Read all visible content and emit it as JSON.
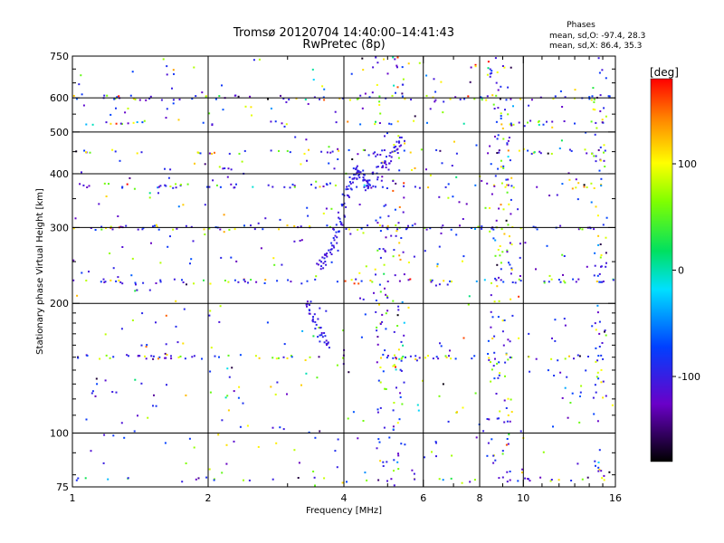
{
  "chart_data": {
    "type": "scatter",
    "title": "Tromsø 20120704 14:40:00–14:41:43",
    "subtitle": "RwPretec (8p)",
    "xlabel": "Frequency [MHz]",
    "ylabel": "Stationary phase Virtual Height [km]",
    "x_scale": "log",
    "y_scale": "log",
    "xlim": [
      1,
      16
    ],
    "ylim": [
      75,
      750
    ],
    "x_ticks": [
      1,
      2,
      4,
      6,
      8,
      10,
      16
    ],
    "y_ticks": [
      75,
      100,
      200,
      300,
      400,
      500,
      600,
      750
    ],
    "grid": true,
    "stats": {
      "title": "Phases",
      "line_o": "mean, sd,O: -97.4, 28.3",
      "line_x": "mean, sd,X:  86.4, 35.3"
    },
    "colorbar": {
      "label": "[deg]",
      "range": [
        -180,
        180
      ],
      "ticks": [
        100,
        0,
        -100
      ],
      "tick_labels": [
        "100",
        "0",
        "-100"
      ]
    },
    "traces": [
      {
        "name": "",
        "phase": -100,
        "x": [
          3.55,
          3.6,
          3.65,
          3.7,
          3.75,
          3.8,
          3.85,
          3.9,
          3.95,
          4.0,
          4.05,
          4.1,
          4.15,
          4.2,
          4.25,
          4.3,
          4.35,
          4.4,
          4.45,
          4.5
        ],
        "y": [
          245,
          250,
          255,
          262,
          270,
          280,
          292,
          305,
          320,
          340,
          355,
          370,
          385,
          395,
          405,
          410,
          400,
          392,
          385,
          380
        ]
      },
      {
        "name": "",
        "phase": -100,
        "x": [
          4.5,
          4.6,
          4.7,
          4.8,
          4.9,
          5.0,
          5.1,
          5.2,
          5.3,
          5.4
        ],
        "y": [
          372,
          380,
          395,
          410,
          420,
          430,
          445,
          455,
          470,
          480
        ]
      },
      {
        "name": "",
        "phase": -100,
        "x": [
          3.35,
          3.4,
          3.45,
          3.5,
          3.55,
          3.6,
          3.65
        ],
        "y": [
          200,
          192,
          185,
          178,
          170,
          165,
          160
        ]
      }
    ],
    "bands": [
      {
        "y": 600,
        "density": 0.55
      },
      {
        "y": 525,
        "density": 0.35
      },
      {
        "y": 450,
        "density": 0.4
      },
      {
        "y": 375,
        "density": 0.5
      },
      {
        "y": 300,
        "density": 0.6
      },
      {
        "y": 225,
        "density": 0.55
      },
      {
        "y": 150,
        "density": 0.6
      },
      {
        "y": 78,
        "density": 0.3
      }
    ]
  }
}
